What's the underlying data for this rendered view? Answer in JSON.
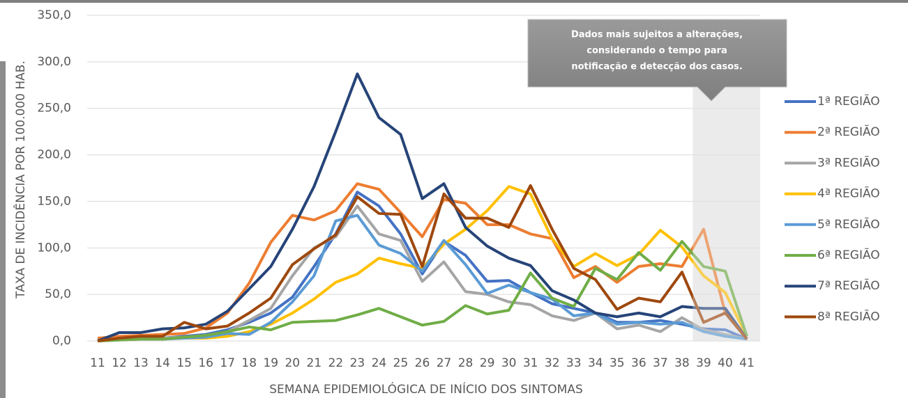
{
  "chart_data": {
    "type": "line",
    "y_label": "TAXA DE INCIDÊNCIA POR 100.000 HAB.",
    "x_label": "SEMANA EPIDEMIOLÓGICA DE INÍCIO DOS SINTOMAS",
    "annotation": [
      "Dados mais sujeitos a alterações,",
      "considerando o tempo para",
      "notificação e detecção dos casos."
    ],
    "shade_from": "39",
    "legend": "right",
    "categories": [
      "11",
      "12",
      "13",
      "14",
      "15",
      "16",
      "17",
      "18",
      "19",
      "20",
      "21",
      "22",
      "23",
      "24",
      "25",
      "26",
      "27",
      "28",
      "29",
      "30",
      "31",
      "32",
      "33",
      "34",
      "35",
      "36",
      "37",
      "38",
      "39",
      "40",
      "41"
    ],
    "ylim": [
      0,
      350
    ],
    "yticks": [
      {
        "value": 0,
        "label": "0,0"
      },
      {
        "value": 50,
        "label": "50,0"
      },
      {
        "value": 100,
        "label": "100,0"
      },
      {
        "value": 150,
        "label": "150,0"
      },
      {
        "value": 200,
        "label": "200,0"
      },
      {
        "value": 250,
        "label": "250,0"
      },
      {
        "value": 300,
        "label": "300,0"
      },
      {
        "value": 350,
        "label": "350,0"
      }
    ],
    "grid": true,
    "series": [
      {
        "name": "1ª REGIÃO",
        "color": "#4472c4",
        "values": [
          0,
          2,
          3,
          3,
          5,
          7,
          12,
          20,
          30,
          47,
          80,
          115,
          160,
          145,
          115,
          72,
          107,
          92,
          64,
          65,
          52,
          40,
          35,
          30,
          20,
          20,
          22,
          18,
          13,
          12,
          2
        ]
      },
      {
        "name": "2ª REGIÃO",
        "color": "#ed7d31",
        "values": [
          3,
          5,
          6,
          7,
          8,
          14,
          30,
          62,
          106,
          135,
          130,
          140,
          169,
          163,
          138,
          112,
          152,
          148,
          125,
          125,
          115,
          110,
          68,
          80,
          63,
          80,
          83,
          80,
          120,
          30,
          5
        ]
      },
      {
        "name": "3ª REGIÃO",
        "color": "#a5a5a5",
        "values": [
          0,
          2,
          3,
          3,
          4,
          6,
          10,
          22,
          35,
          70,
          100,
          112,
          145,
          115,
          108,
          64,
          85,
          53,
          50,
          42,
          39,
          27,
          22,
          30,
          13,
          17,
          10,
          25,
          12,
          7,
          2
        ]
      },
      {
        "name": "4ª REGIÃO",
        "color": "#ffc000",
        "values": [
          0,
          1,
          2,
          2,
          3,
          3,
          5,
          10,
          18,
          30,
          45,
          63,
          72,
          89,
          83,
          78,
          104,
          120,
          140,
          166,
          158,
          110,
          80,
          94,
          81,
          93,
          119,
          101,
          70,
          52,
          5
        ]
      },
      {
        "name": "5ª REGIÃO",
        "color": "#5b9bd5",
        "values": [
          0,
          1,
          2,
          2,
          3,
          4,
          8,
          7,
          20,
          42,
          70,
          129,
          135,
          103,
          94,
          75,
          108,
          82,
          51,
          60,
          52,
          45,
          27,
          30,
          18,
          20,
          18,
          20,
          10,
          5,
          2
        ]
      },
      {
        "name": "6ª REGIÃO",
        "color": "#70ad47",
        "values": [
          0,
          1,
          2,
          2,
          4,
          6,
          10,
          15,
          12,
          20,
          21,
          22,
          28,
          35,
          26,
          17,
          21,
          38,
          29,
          33,
          73,
          46,
          37,
          78,
          66,
          95,
          76,
          107,
          80,
          75,
          5
        ]
      },
      {
        "name": "7ª REGIÃO",
        "color": "#264478",
        "values": [
          0,
          9,
          9,
          13,
          14,
          18,
          32,
          56,
          80,
          120,
          166,
          225,
          287,
          240,
          222,
          153,
          169,
          122,
          102,
          89,
          81,
          54,
          44,
          30,
          26,
          30,
          26,
          37,
          35,
          35,
          2
        ]
      },
      {
        "name": "8ª REGIÃO",
        "color": "#9e480e",
        "values": [
          0,
          3,
          5,
          5,
          20,
          13,
          16,
          30,
          46,
          82,
          99,
          114,
          155,
          137,
          136,
          80,
          158,
          132,
          132,
          122,
          167,
          120,
          78,
          66,
          34,
          46,
          42,
          74,
          20,
          30,
          2
        ]
      }
    ]
  }
}
